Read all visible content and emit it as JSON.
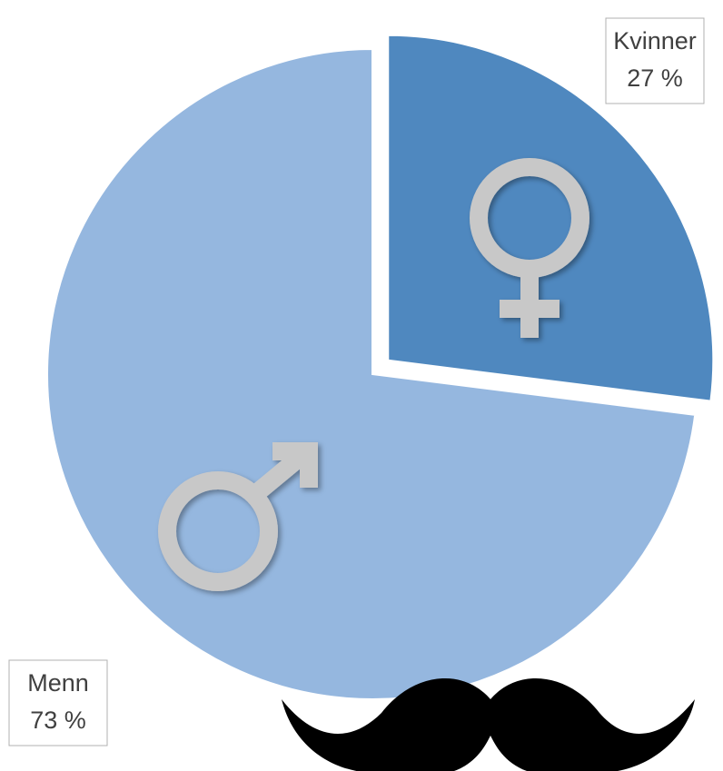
{
  "chart_data": {
    "type": "pie",
    "categories": [
      "Kvinner",
      "Menn"
    ],
    "values": [
      27,
      73
    ],
    "value_labels": [
      "27 %",
      "73 %"
    ],
    "colors": [
      "#4f88bf",
      "#95b7df"
    ]
  }
}
